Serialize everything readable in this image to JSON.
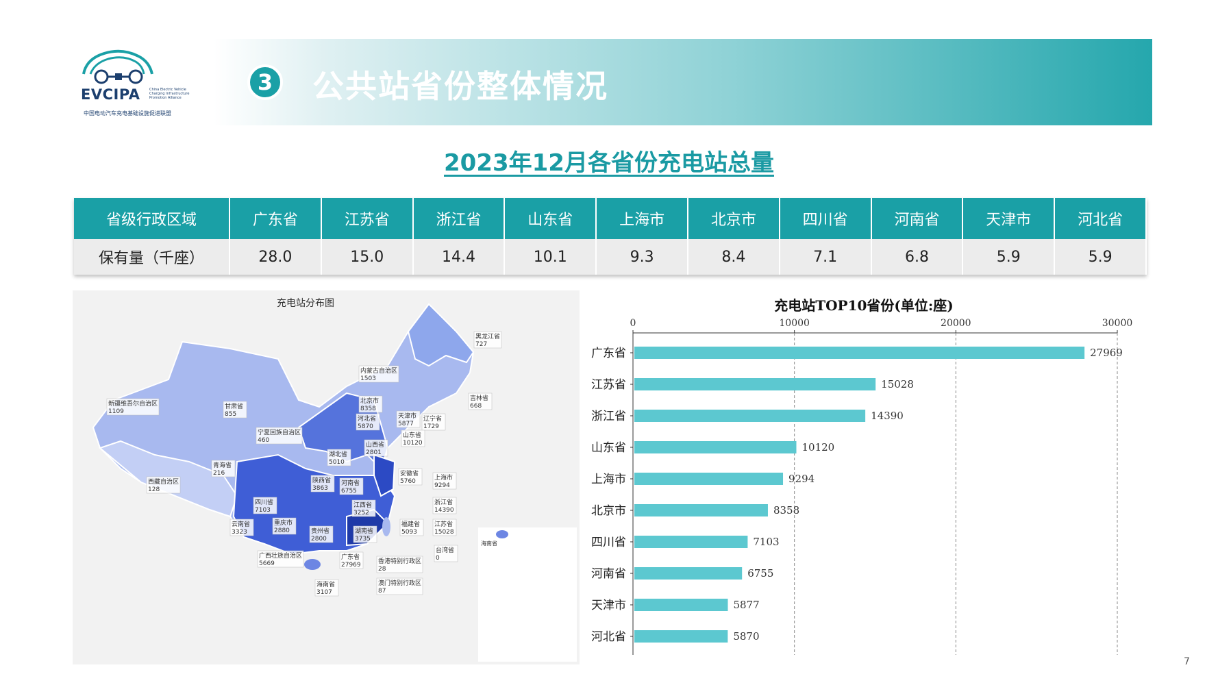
{
  "logo": {
    "name": "EVCIPA",
    "subtitle": "China Electric Vehicle Charging Infrastructure Promotion Alliance",
    "cn_name": "中国电动汽车充电基础设施促进联盟"
  },
  "header": {
    "badge": "3",
    "title": "公共站省份整体情况"
  },
  "subtitle": "2023年12月各省份充电站总量",
  "summary_table": {
    "header_label": "省级行政区域",
    "row_label": "保有量（千座）",
    "provinces": [
      "广东省",
      "江苏省",
      "浙江省",
      "山东省",
      "上海市",
      "北京市",
      "四川省",
      "河南省",
      "天津市",
      "河北省"
    ],
    "values": [
      "28.0",
      "15.0",
      "14.4",
      "10.1",
      "9.3",
      "8.4",
      "7.1",
      "6.8",
      "5.9",
      "5.9"
    ]
  },
  "map": {
    "title": "充电站分布图",
    "labels": [
      {
        "name": "黑龙江省",
        "value": "727"
      },
      {
        "name": "内蒙古自治区",
        "value": "1503"
      },
      {
        "name": "吉林省",
        "value": "668"
      },
      {
        "name": "新疆维吾尔自治区",
        "value": "1109"
      },
      {
        "name": "甘肃省",
        "value": "855"
      },
      {
        "name": "北京市",
        "value": "8358"
      },
      {
        "name": "天津市",
        "value": "5877"
      },
      {
        "name": "辽宁省",
        "value": "1729"
      },
      {
        "name": "河北省",
        "value": "5870"
      },
      {
        "name": "宁夏回族自治区",
        "value": "460"
      },
      {
        "name": "山东省",
        "value": "10120"
      },
      {
        "name": "山西省",
        "value": "2801"
      },
      {
        "name": "湖北省",
        "value": "5010"
      },
      {
        "name": "青海省",
        "value": "216"
      },
      {
        "name": "安徽省",
        "value": "5760"
      },
      {
        "name": "上海市",
        "value": "9294"
      },
      {
        "name": "西藏自治区",
        "value": "128"
      },
      {
        "name": "陕西省",
        "value": "3863"
      },
      {
        "name": "河南省",
        "value": "6755"
      },
      {
        "name": "浙江省",
        "value": "14390"
      },
      {
        "name": "四川省",
        "value": "7103"
      },
      {
        "name": "江西省",
        "value": "3252"
      },
      {
        "name": "福建省",
        "value": "5093"
      },
      {
        "name": "江苏省",
        "value": "15028"
      },
      {
        "name": "云南省",
        "value": "3323"
      },
      {
        "name": "重庆市",
        "value": "2880"
      },
      {
        "name": "贵州省",
        "value": "2800"
      },
      {
        "name": "湖南省",
        "value": "3735"
      },
      {
        "name": "台湾省",
        "value": "0"
      },
      {
        "name": "广西壮族自治区",
        "value": "5669"
      },
      {
        "name": "广东省",
        "value": "27969"
      },
      {
        "name": "香港特别行政区",
        "value": "28"
      },
      {
        "name": "海南省",
        "value": "3107"
      },
      {
        "name": "澳门特别行政区",
        "value": "87"
      }
    ],
    "inset_label": "海南省"
  },
  "chart_data": {
    "type": "bar",
    "orientation": "horizontal",
    "title": "充电站TOP10省份(单位:座)",
    "categories": [
      "广东省",
      "江苏省",
      "浙江省",
      "山东省",
      "上海市",
      "北京市",
      "四川省",
      "河南省",
      "天津市",
      "河北省"
    ],
    "values": [
      27969,
      15028,
      14390,
      10120,
      9294,
      8358,
      7103,
      6755,
      5877,
      5870
    ],
    "xlim": [
      0,
      30000
    ],
    "xticks": [
      0,
      10000,
      20000,
      30000
    ],
    "grid": true,
    "axis_position": "top",
    "bar_color": "#5cc8d0"
  },
  "page_number": "7"
}
